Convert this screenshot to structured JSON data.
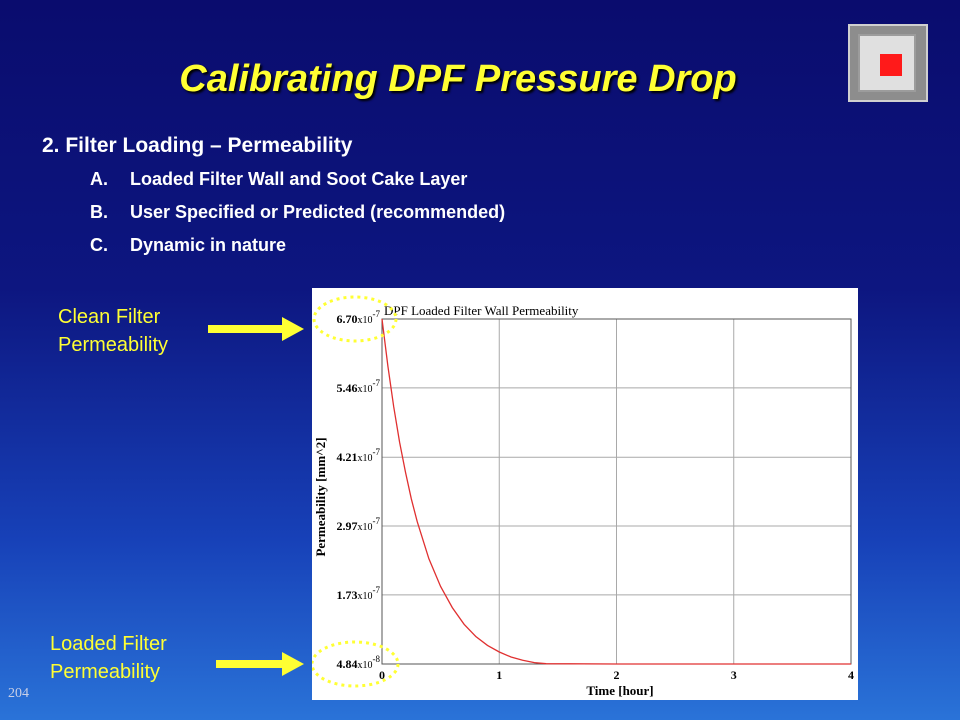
{
  "slide": {
    "title": "Calibrating DPF Pressure Drop",
    "slide_number": "204",
    "main_bullet": "2. Filter Loading – Permeability",
    "sub_bullets": [
      {
        "letter": "A.",
        "text": "Loaded Filter Wall and Soot Cake Layer"
      },
      {
        "letter": "B.",
        "text": "User Specified or Predicted (recommended)"
      },
      {
        "letter": "C.",
        "text": "Dynamic in nature"
      }
    ],
    "callouts": {
      "clean": [
        "Clean Filter",
        "Permeability"
      ],
      "loaded": [
        "Loaded Filter",
        "Permeability"
      ]
    },
    "colors": {
      "title": "#ffff33",
      "callout": "#ffff33",
      "curve": "#e03030",
      "logo_accent": "#ff1a1a"
    }
  },
  "chart_data": {
    "type": "line",
    "title": "DPF Loaded Filter Wall Permeability",
    "xlabel": "Time [hour]",
    "ylabel": "Permeability [mm^2]",
    "xlim": [
      0,
      4
    ],
    "ylim": [
      4.84e-08,
      6.7e-07
    ],
    "x_ticks": [
      {
        "value": 0,
        "label": "0"
      },
      {
        "value": 1,
        "label": "1"
      },
      {
        "value": 2,
        "label": "2"
      },
      {
        "value": 3,
        "label": "3"
      },
      {
        "value": 4,
        "label": "4"
      }
    ],
    "y_ticks": [
      {
        "value": 6.7e-07,
        "mantissa": "6.70",
        "times": "x10",
        "exp": "-7"
      },
      {
        "value": 5.46e-07,
        "mantissa": "5.46",
        "times": "x10",
        "exp": "-7"
      },
      {
        "value": 4.21e-07,
        "mantissa": "4.21",
        "times": "x10",
        "exp": "-7"
      },
      {
        "value": 2.97e-07,
        "mantissa": "2.97",
        "times": "x10",
        "exp": "-7"
      },
      {
        "value": 1.73e-07,
        "mantissa": "1.73",
        "times": "x10",
        "exp": "-7"
      },
      {
        "value": 4.84e-08,
        "mantissa": "4.84",
        "times": "x10",
        "exp": "-8"
      }
    ],
    "grid": true,
    "series": [
      {
        "x": [
          0,
          0.05,
          0.1,
          0.15,
          0.2,
          0.25,
          0.3,
          0.4,
          0.5,
          0.6,
          0.7,
          0.8,
          0.9,
          1.0,
          1.1,
          1.2,
          1.3,
          1.4,
          2.0,
          3.0,
          4.0
        ],
        "values": [
          6.7e-07,
          5.85e-07,
          5.12e-07,
          4.48e-07,
          3.94e-07,
          3.46e-07,
          3.05e-07,
          2.38e-07,
          1.88e-07,
          1.5e-07,
          1.2e-07,
          9.8e-08,
          8.2e-08,
          7e-08,
          6.1e-08,
          5.5e-08,
          5.1e-08,
          4.9e-08,
          4.84e-08,
          4.84e-08,
          4.84e-08
        ],
        "color": "#e03030"
      }
    ],
    "annotations": [
      {
        "type": "circle",
        "target": "y_tick_top",
        "color": "#ffff33"
      },
      {
        "type": "circle",
        "target": "y_tick_bottom",
        "color": "#ffff33"
      }
    ]
  }
}
